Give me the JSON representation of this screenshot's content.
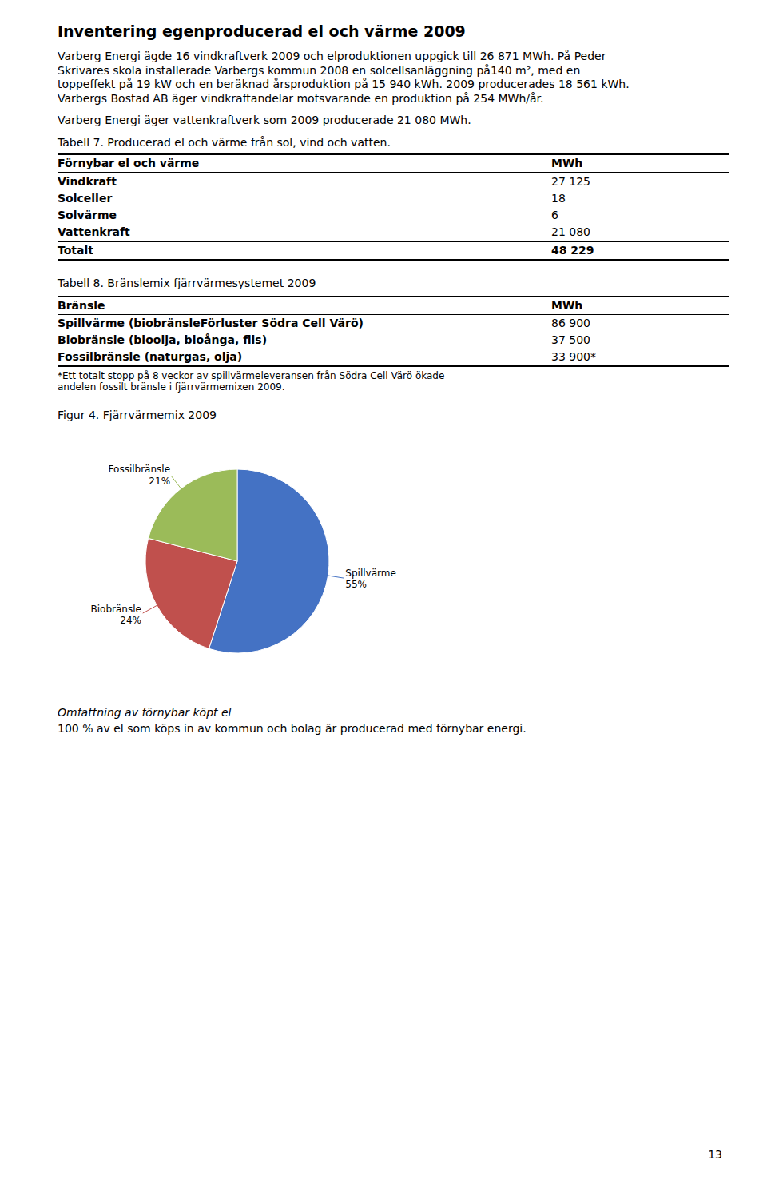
{
  "chart_data": {
    "type": "pie",
    "title": "Figur 4. Fjärrvärmemix 2009",
    "categories": [
      "Spillvärme",
      "Biobränsle",
      "Fossilbränsle"
    ],
    "values": [
      55,
      24,
      21
    ],
    "value_labels": [
      "55%",
      "24%",
      "21%"
    ],
    "colors": [
      "#4472C4",
      "#C0504D",
      "#9BBB59"
    ],
    "data_labels": true
  },
  "document": {
    "title": "Inventering egenproducerad el och värme 2009",
    "para1_lines": [
      "Varberg Energi ägde 16 vindkraftverk 2009 och elproduktionen uppgick till 26 871 MWh. På Peder",
      "Skrivares skola installerade Varbergs kommun 2008 en solcellsanläggning på140 m², med en",
      "toppeffekt på 19 kW och en beräknad årsproduktion på 15 940 kWh. 2009 producerades 18 561 kWh.",
      "Varbergs Bostad AB äger vindkraftandelar motsvarande en produktion på 254 MWh/år."
    ],
    "para2": "Varberg Energi äger vattenkraftverk som 2009 producerade 21 080 MWh.",
    "table1_caption": "Tabell 7. Producerad el och värme från sol, vind och vatten.",
    "table1_header": [
      "Förnybar el och värme",
      "MWh"
    ],
    "table1_rows": [
      [
        "Vindkraft",
        "27 125"
      ],
      [
        "Solceller",
        "18"
      ],
      [
        "Solvärme",
        "6"
      ],
      [
        "Vattenkraft",
        "21 080"
      ]
    ],
    "table1_total": [
      "Totalt",
      "48 229"
    ],
    "table2_caption": "Tabell 8. Bränslemix fjärrvärmesystemet 2009",
    "table2_header": [
      "Bränsle",
      "MWh"
    ],
    "table2_rows": [
      [
        "Spillvärme (biobränsleFörluster Södra Cell Värö)",
        "86 900"
      ],
      [
        "Biobränsle (bioolja, bioånga, flis)",
        "37 500"
      ],
      [
        "Fossilbränsle (naturgas, olja)",
        "33 900*"
      ]
    ],
    "table2_footnote_lines": [
      "*Ett totalt stopp på 8 veckor av spillvärmeleveransen från Södra Cell Värö ökade",
      "andelen fossilt bränsle i fjärrvärmemixen 2009."
    ],
    "section_title": "Omfattning av förnybar köpt el",
    "section_body": "100 % av el som köps in av kommun och bolag är producerad med förnybar energi.",
    "page_number": "13"
  }
}
